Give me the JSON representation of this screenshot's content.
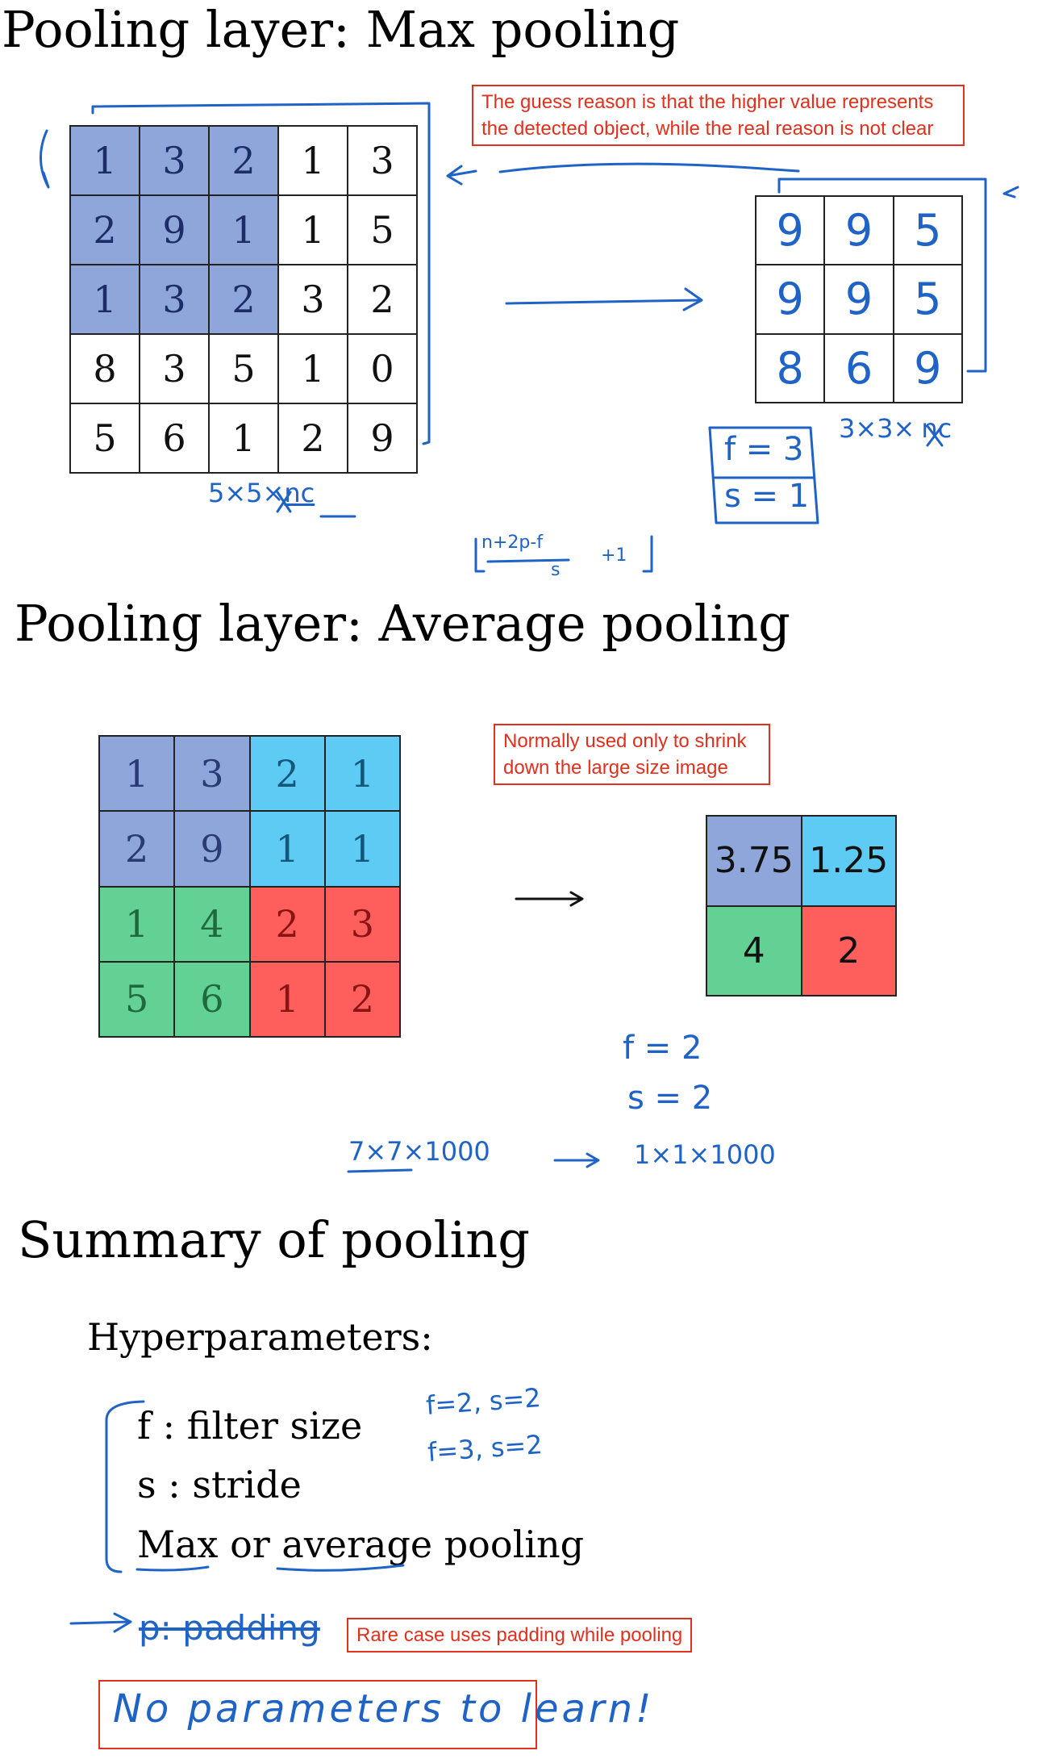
{
  "colors": {
    "ink": "#1f63c6",
    "note": "#e0301e",
    "blue": "#8fa6da",
    "cyan": "#5ecbf4",
    "green": "#62d193",
    "red": "#fe5f5d"
  },
  "max_pooling": {
    "title": "Pooling layer: Max pooling",
    "input": [
      [
        "1",
        "3",
        "2",
        "1",
        "3"
      ],
      [
        "2",
        "9",
        "1",
        "1",
        "5"
      ],
      [
        "1",
        "3",
        "2",
        "3",
        "2"
      ],
      [
        "8",
        "3",
        "5",
        "1",
        "0"
      ],
      [
        "5",
        "6",
        "1",
        "2",
        "9"
      ]
    ],
    "output": [
      [
        "9",
        "9",
        "5"
      ],
      [
        "9",
        "9",
        "5"
      ],
      [
        "8",
        "6",
        "9"
      ]
    ],
    "note": "The guess reason is that the higher value represents the detected object, while the real reason is not clear",
    "input_dims": "5×5×",
    "input_channels": "nc",
    "output_dims": "3×3×",
    "output_channels": "nc",
    "f": "f = 3",
    "s": "s = 1",
    "formula_num": "n+2p-f",
    "formula_den": "s",
    "formula_plus": "+1"
  },
  "average_pooling": {
    "title": "Pooling layer: Average pooling",
    "input": [
      [
        "1",
        "3",
        "2",
        "1"
      ],
      [
        "2",
        "9",
        "1",
        "1"
      ],
      [
        "1",
        "4",
        "2",
        "3"
      ],
      [
        "5",
        "6",
        "1",
        "2"
      ]
    ],
    "output": [
      [
        "3.75",
        "1.25"
      ],
      [
        "4",
        "2"
      ]
    ],
    "note": "Normally used only to shrink down the large size image",
    "f": "f = 2",
    "s": "s = 2",
    "example_in": "7×7×1000",
    "example_out": "1×1×1000"
  },
  "summary": {
    "title": "Summary of pooling",
    "hyper_label": "Hyperparameters:",
    "items": [
      "f : filter size",
      "s : stride",
      "Max or average pooling"
    ],
    "hand_1": "f=2, s=2",
    "hand_2": "f=3, s=2",
    "padding_text": "p: padding",
    "padding_note": "Rare case uses padding while pooling",
    "no_params": "No parameters to learn!"
  }
}
